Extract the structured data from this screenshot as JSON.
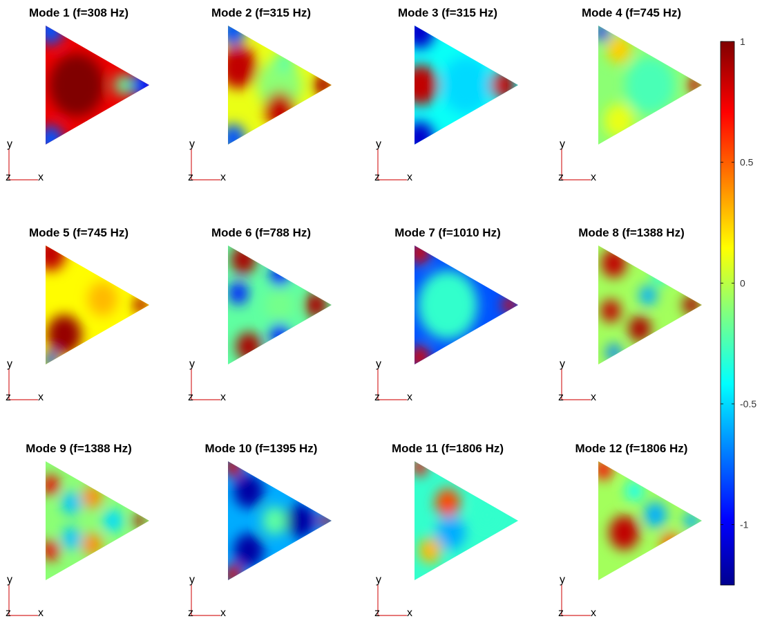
{
  "chart_data": {
    "type": "heatmap",
    "description_type": "modal shape field plots (small multiples) with shared colorbar",
    "panels": [
      {
        "title": "Mode 1 (f=308 Hz)",
        "mode": 1,
        "frequency_hz": 308,
        "shape": "ring"
      },
      {
        "title": "Mode 2 (f=315 Hz)",
        "mode": 2,
        "frequency_hz": 315,
        "shape": "star3"
      },
      {
        "title": "Mode 3 (f=315 Hz)",
        "mode": 3,
        "frequency_hz": 315,
        "shape": "saddle"
      },
      {
        "title": "Mode 4 (f=745 Hz)",
        "mode": 4,
        "frequency_hz": 745,
        "shape": "mild"
      },
      {
        "title": "Mode 5 (f=745 Hz)",
        "mode": 5,
        "frequency_hz": 745,
        "shape": "warm"
      },
      {
        "title": "Mode 6 (f=788 Hz)",
        "mode": 6,
        "frequency_hz": 788,
        "shape": "star3b"
      },
      {
        "title": "Mode 7 (f=1010 Hz)",
        "mode": 7,
        "frequency_hz": 1010,
        "shape": "centerRing"
      },
      {
        "title": "Mode 8 (f=1388 Hz)",
        "mode": 8,
        "frequency_hz": 1388,
        "shape": "spots"
      },
      {
        "title": "Mode 9 (f=1388 Hz)",
        "mode": 9,
        "frequency_hz": 1388,
        "shape": "spots2"
      },
      {
        "title": "Mode 10 (f=1395 Hz)",
        "mode": 10,
        "frequency_hz": 1395,
        "shape": "deep"
      },
      {
        "title": "Mode 11 (f=1806 Hz)",
        "mode": 11,
        "frequency_hz": 1806,
        "shape": "pattern11"
      },
      {
        "title": "Mode 12 (f=1806 Hz)",
        "mode": 12,
        "frequency_hz": 1806,
        "shape": "pattern12"
      }
    ],
    "axis_triad": {
      "x_label": "x",
      "y_label": "y",
      "z_label": "z"
    },
    "colorbar": {
      "colormap": "jet",
      "range": [
        -1.25,
        1.0
      ],
      "ticks": [
        1,
        0.5,
        0,
        -0.5,
        -1
      ],
      "tick_labels": [
        "1",
        "0.5",
        "0",
        "-0.5",
        "-1"
      ]
    },
    "grid": false,
    "legend": "none"
  }
}
